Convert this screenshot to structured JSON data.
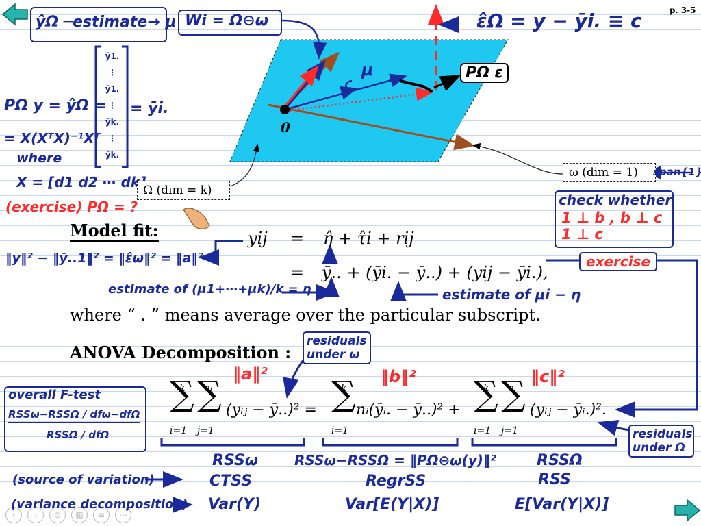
{
  "page_label": "p. 3-5",
  "notes": {
    "estimate_top": "ŷΩ ─estimate→ μ",
    "wi_box": "Wi = Ω⊖ω",
    "epsilon_eq": "ε̂Ω = y − ȳi. ≡ c",
    "proj_line1": "PΩ y = ŷΩ =",
    "proj_line2": "= X(XᵀX)⁻¹Xᵀ",
    "proj_where": "where",
    "proj_x": "X = [d1 d2 ⋯ dk]",
    "proj_matrix_result": "= ȳi.",
    "matrix_entries": [
      "ȳ1.",
      "⋮",
      "ȳ1.",
      "⋮",
      "ȳk.",
      "⋮",
      "ȳk."
    ],
    "exercise_p": "(exercise) PΩ = ?",
    "mu_label": "μ",
    "p_eps_box": "PΩ ε",
    "origin_label": "0",
    "omega_big_box": "Ω (dim = k)",
    "omega_small_box": "ω (dim = 1)",
    "span_label": "span{1}",
    "check_whether": "check whether",
    "check_lines": [
      "1 ⊥ b , b ⊥ c",
      "1 ⊥ c"
    ],
    "exercise_right": "exercise",
    "norm_identity": "‖y‖² − ‖ȳ..1‖² = ‖ε̂ω‖² = ‖a‖²",
    "estimate_eta": "estimate of (μ1+⋯+μk)/k = η",
    "estimate_mu": "estimate of μi − η",
    "residuals_omega": "residuals under ω",
    "residuals_Omega": "residuals under Ω",
    "norm_a": "‖a‖²",
    "norm_b": "‖b‖²",
    "norm_c": "‖c‖²",
    "ftest_title": "overall F-test",
    "ftest_num": "RSSω−RSSΩ / dfω−dfΩ",
    "ftest_den": "RSSΩ / dfΩ",
    "rss_omega": "RSSω",
    "rss_diff": "RSSω−RSSΩ = ‖PΩ⊖ω(y)‖²",
    "rss_Omega": "RSSΩ",
    "source_label": "(source of variation)",
    "variance_label": "(variance decomposition)",
    "ctss": "CTSS",
    "regrss": "RegrSS",
    "rss": "RSS",
    "var_y": "Var(Y)",
    "var_e": "Var[E(Y|X)]",
    "e_var": "E[Var(Y|X)]"
  },
  "body": {
    "model_fit": "Model fit:",
    "eq1_lhs": "yij",
    "eq1_rhs": "η̂ + τ̂i + rij",
    "eq2_rhs": "ȳ.. + (ȳi. − ȳ..) + (yij − ȳi.),",
    "where_line": "where “ . ” means average over the particular subscript.",
    "anova_title": "ANOVA Decomposition :"
  },
  "colors": {
    "ink_blue": "#1a2a9a",
    "ink_red": "#ff2a2a",
    "plane": "#1ec8f0",
    "nav_teal": "#1aa7a0"
  }
}
